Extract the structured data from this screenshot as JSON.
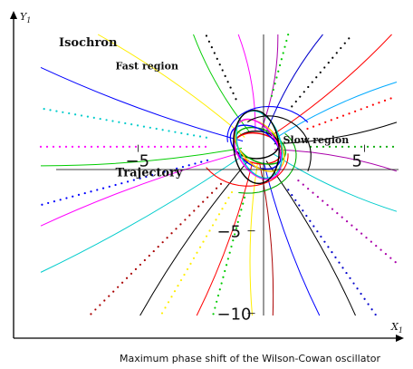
{
  "chart_data": {
    "type": "scatter",
    "title": "",
    "caption": "Maximum phase shift of the Wilson-Cowan oscillator",
    "xlabel": "X",
    "xlabel_sub": "1",
    "ylabel": "Y",
    "ylabel_sub": "1",
    "xlim": [
      -10.5,
      6.5
    ],
    "ylim": [
      -11.5,
      8
    ],
    "grid": false,
    "legend": "none",
    "x_ticks": [
      {
        "value": -5,
        "label": "−5"
      },
      {
        "value": 5,
        "label": "5"
      }
    ],
    "y_ticks": [
      {
        "value": -5,
        "label": "−5"
      },
      {
        "value": -10,
        "label": "−10"
      }
    ],
    "annotations": [
      {
        "text": "Isochron",
        "x": -8.5,
        "y": 6.2
      },
      {
        "text": "Fast region",
        "x": -6.0,
        "y": 4.8
      },
      {
        "text": "Slow region",
        "x": 1.4,
        "y": 0.3
      },
      {
        "text": "Trajectory",
        "x": -6.0,
        "y": -1.7
      }
    ],
    "limit_cycle": {
      "center": [
        0.3,
        0.1
      ],
      "radius_x": 1.3,
      "radius_y": 1.1
    },
    "isochrons": [
      {
        "color": "#00cc00",
        "style": "solid",
        "angle": 120
      },
      {
        "color": "#ff00ff",
        "style": "solid",
        "angle": 100
      },
      {
        "color": "#0000cc",
        "style": "solid",
        "angle": 60
      },
      {
        "color": "#ff0000",
        "style": "solid",
        "angle": 40
      },
      {
        "color": "#00aaff",
        "style": "solid",
        "angle": 25
      },
      {
        "color": "#000000",
        "style": "solid",
        "angle": 10
      },
      {
        "color": "#aa00aa",
        "style": "solid",
        "angle": 350
      },
      {
        "color": "#00cccc",
        "style": "solid",
        "angle": 335
      },
      {
        "color": "#000000",
        "style": "solid",
        "angle": 300
      },
      {
        "color": "#0000ff",
        "style": "solid",
        "angle": 290
      },
      {
        "color": "#aa0000",
        "style": "solid",
        "angle": 275
      },
      {
        "color": "#ffee00",
        "style": "solid",
        "angle": 268
      },
      {
        "color": "#ff0000",
        "style": "solid",
        "angle": 250
      },
      {
        "color": "#000000",
        "style": "solid",
        "angle": 235
      },
      {
        "color": "#00cccc",
        "style": "solid",
        "angle": 210
      },
      {
        "color": "#ff00ff",
        "style": "solid",
        "angle": 200
      },
      {
        "color": "#0000ff",
        "style": "solid",
        "angle": 160
      },
      {
        "color": "#ffee00",
        "style": "solid",
        "angle": 145
      },
      {
        "color": "#00cc00",
        "style": "solid",
        "angle": 185
      },
      {
        "color": "#aa00aa",
        "style": "solid",
        "angle": 80
      },
      {
        "color": "#000000",
        "style": "dotted",
        "angle": 115
      },
      {
        "color": "#00cccc",
        "style": "dotted",
        "angle": 170
      },
      {
        "color": "#ff00ff",
        "style": "dotted",
        "angle": 180
      },
      {
        "color": "#ffee00",
        "style": "dotted",
        "angle": 240
      },
      {
        "color": "#00cc00",
        "style": "dotted",
        "angle": 255
      },
      {
        "color": "#aa0000",
        "style": "dotted",
        "angle": 225
      },
      {
        "color": "#0000ff",
        "style": "dotted",
        "angle": 195
      },
      {
        "color": "#000000",
        "style": "dotted",
        "angle": 50
      },
      {
        "color": "#ff0000",
        "style": "dotted",
        "angle": 20
      },
      {
        "color": "#00aa00",
        "style": "dotted",
        "angle": 0
      },
      {
        "color": "#aa00aa",
        "style": "dotted",
        "angle": 320
      },
      {
        "color": "#0000cc",
        "style": "dotted",
        "angle": 305
      },
      {
        "color": "#00cc00",
        "style": "dotted",
        "angle": 75
      }
    ]
  }
}
